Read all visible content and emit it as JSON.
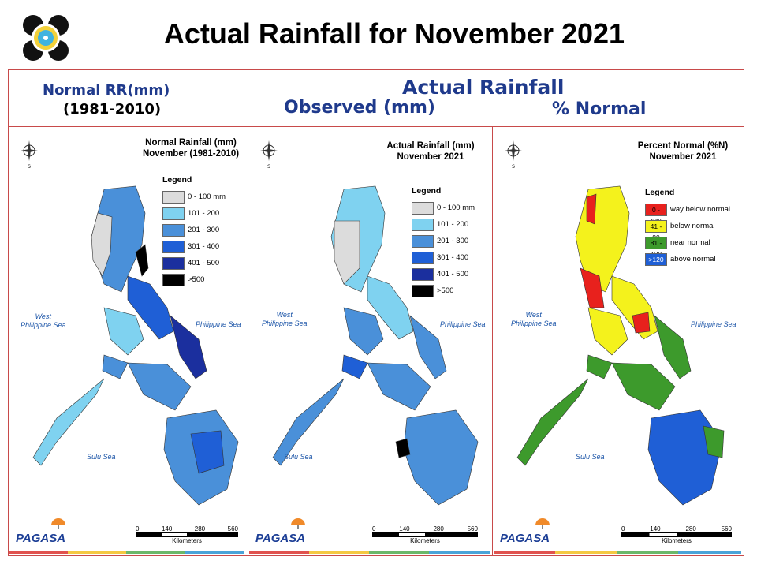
{
  "page": {
    "title": "Actual Rainfall for November 2021"
  },
  "headers": {
    "normal_line1": "Normal RR(mm)",
    "normal_line2": "(1981-2010)",
    "actual": "Actual Rainfall",
    "observed": "Observed (mm)",
    "percent": "% Normal"
  },
  "maps": [
    {
      "title_line1": "Normal Rainfall (mm)",
      "title_line2": "November (1981-2010)",
      "legend_title": "Legend",
      "legend": [
        {
          "label": "0 - 100 mm",
          "color": "#dcdcdc"
        },
        {
          "label": "101 - 200",
          "color": "#7fd2f0"
        },
        {
          "label": "201 - 300",
          "color": "#4a90d9"
        },
        {
          "label": "301 - 400",
          "color": "#1f5fd6"
        },
        {
          "label": "401 - 500",
          "color": "#1b2f9e"
        },
        {
          "label": ">500",
          "color": "#000000"
        }
      ],
      "sea_west_1": "West",
      "sea_west_2": "Philippine Sea",
      "sea_east": "Philippine Sea",
      "sea_south": "Sulu Sea"
    },
    {
      "title_line1": "Actual Rainfall (mm)",
      "title_line2": "November 2021",
      "legend_title": "Legend",
      "legend": [
        {
          "label": "0 - 100 mm",
          "color": "#dcdcdc"
        },
        {
          "label": "101 - 200",
          "color": "#7fd2f0"
        },
        {
          "label": "201 - 300",
          "color": "#4a90d9"
        },
        {
          "label": "301 - 400",
          "color": "#1f5fd6"
        },
        {
          "label": "401 - 500",
          "color": "#1b2f9e"
        },
        {
          "label": ">500",
          "color": "#000000"
        }
      ],
      "sea_west_1": "West",
      "sea_west_2": "Philippine Sea",
      "sea_east": "Philippine Sea",
      "sea_south": "Sulu Sea"
    },
    {
      "title_line1": "Percent Normal (%N)",
      "title_line2": "November 2021",
      "legend_title": "Legend",
      "legend": [
        {
          "swatch": "0 - 40%",
          "label": "way below normal",
          "color": "#e8211d"
        },
        {
          "swatch": "41 - 80",
          "label": "below normal",
          "color": "#f4f21c"
        },
        {
          "swatch": "81 - 120",
          "label": "near normal",
          "color": "#3d9a2c"
        },
        {
          "swatch": ">120",
          "label": "above normal",
          "color": "#1f5fd6"
        }
      ],
      "sea_west_1": "West",
      "sea_west_2": "Philippine Sea",
      "sea_east": "Philippine Sea",
      "sea_south": "Sulu Sea"
    }
  ],
  "scale": {
    "ticks": [
      "0",
      "140",
      "280",
      "560"
    ],
    "unit": "Kilometers"
  },
  "branding": {
    "agency": "PAGASA",
    "dost": "DOST"
  },
  "stripe_colors": [
    "#e0524e",
    "#f4c842",
    "#6bb86a",
    "#4aa3d8"
  ]
}
